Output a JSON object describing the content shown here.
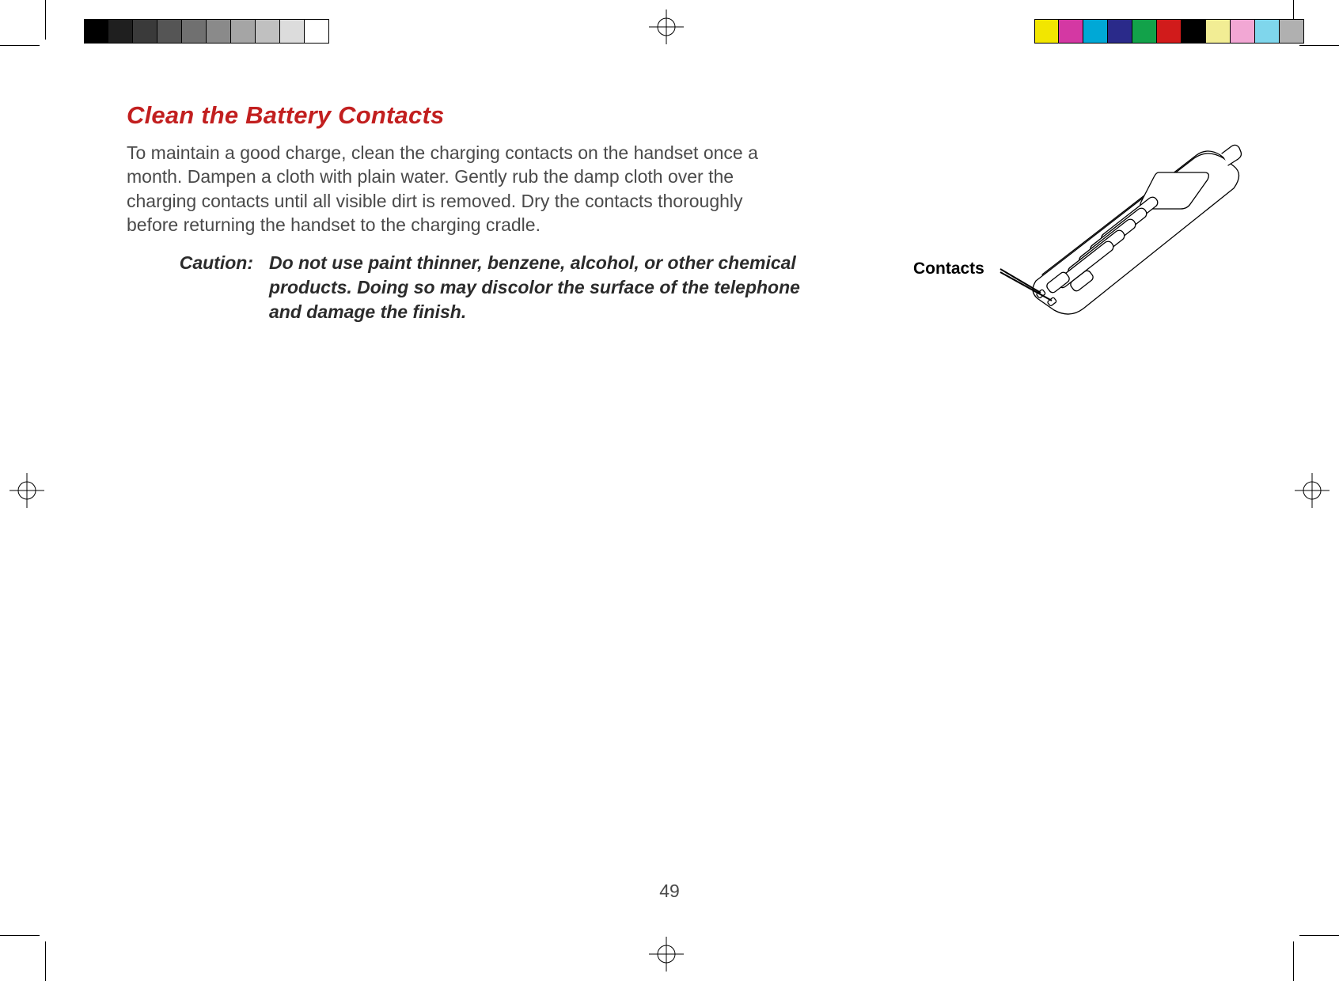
{
  "title": "Clean the Battery Contacts",
  "body": "To maintain a good charge, clean the charging contacts on the handset once a month. Dampen a cloth with plain water. Gently rub the damp cloth over the charging contacts until all visible dirt is removed. Dry the contacts thoroughly before returning the handset to the charging cradle.",
  "caution_label": "Caution:",
  "caution_text": "Do not use paint thinner, benzene, alcohol, or other chemical products. Doing so may discolor the surface of the telephone and damage the finish.",
  "illustration_label": "Contacts",
  "page_number": "49",
  "title_color": "#c21f1f",
  "text_color": "#4a4a4a",
  "gray_swatches": [
    "#000000",
    "#1f1f1f",
    "#3a3a3a",
    "#555555",
    "#707070",
    "#8a8a8a",
    "#a5a5a5",
    "#c0c0c0",
    "#dcdcdc",
    "#ffffff"
  ],
  "color_swatches": [
    "#f2e600",
    "#d438a3",
    "#00a8d6",
    "#2a2a8a",
    "#12a24a",
    "#d11b1b",
    "#000000",
    "#f2ed94",
    "#f2a7d4",
    "#7fd6ec",
    "#b0b0b0"
  ]
}
